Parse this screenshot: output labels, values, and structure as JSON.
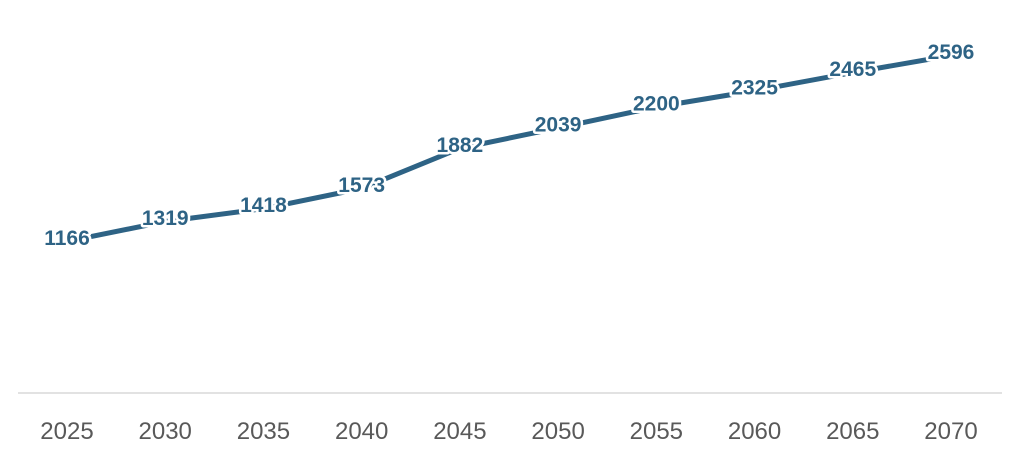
{
  "chart_data": {
    "type": "line",
    "x": [
      "2025",
      "2030",
      "2035",
      "2040",
      "2045",
      "2050",
      "2055",
      "2060",
      "2065",
      "2070"
    ],
    "series": [
      {
        "values": [
          1166,
          1319,
          1418,
          1573,
          1882,
          2039,
          2200,
          2325,
          2465,
          2596
        ]
      }
    ],
    "title": "",
    "xlabel": "",
    "ylabel": "",
    "ylim": [
      0,
      2700
    ],
    "grid": false,
    "legend": "none",
    "data_labels": true,
    "colors": {
      "line": "#2e6385",
      "label": "#2e6385",
      "tick": "#595959",
      "axis": "#d9d9d9"
    }
  }
}
